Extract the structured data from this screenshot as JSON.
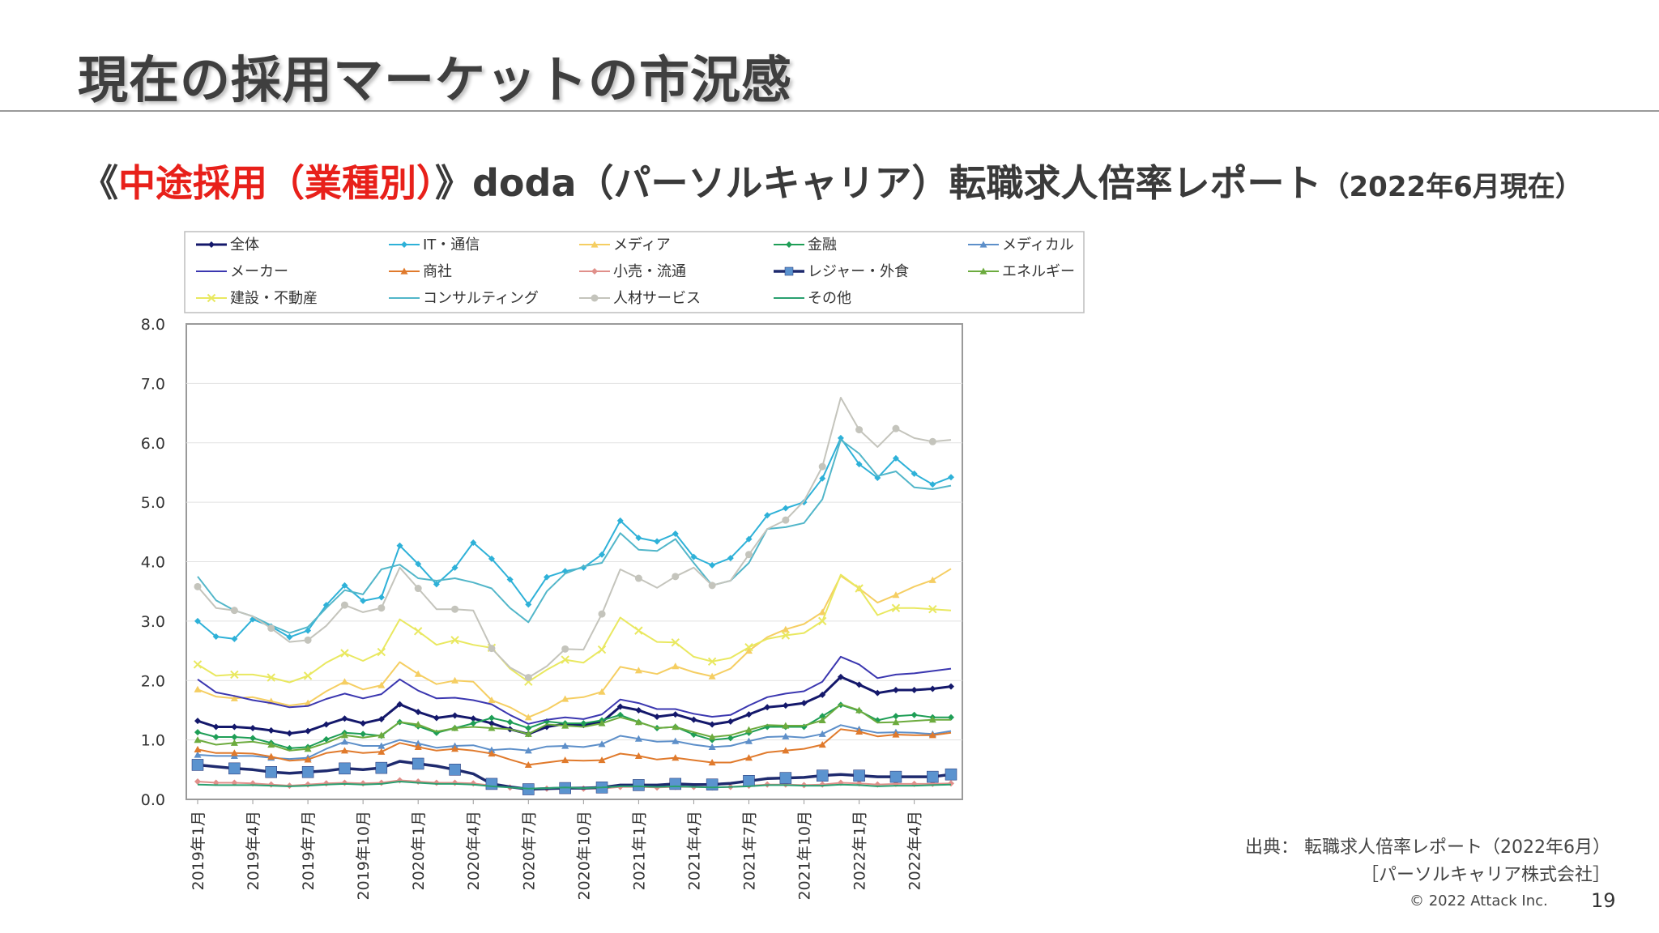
{
  "page": {
    "title": "現在の採用マーケットの市況感",
    "subtitle": {
      "open": "《",
      "highlight": "中途採用（業種別）",
      "mid": "》doda（パーソルキャリア）転職求人倍率レポート",
      "small": "（2022年6月現在）"
    },
    "source_line1": "出典： 転職求人倍率レポート（2022年6月）",
    "source_line2": "［パーソルキャリア株式会社］",
    "copyright": "© 2022 Attack Inc.",
    "page_number": "19"
  },
  "chart_data": {
    "type": "line",
    "ylim": [
      0,
      8
    ],
    "y_ticks": [
      "0.0",
      "1.0",
      "2.0",
      "3.0",
      "4.0",
      "5.0",
      "6.0",
      "7.0",
      "8.0"
    ],
    "x_labels": [
      "2019年1月",
      "2019年4月",
      "2019年7月",
      "2019年10月",
      "2020年1月",
      "2020年4月",
      "2020年7月",
      "2020年10月",
      "2021年1月",
      "2021年4月",
      "2021年7月",
      "2021年10月",
      "2022年1月",
      "2022年4月"
    ],
    "x_label_indices": [
      0,
      3,
      6,
      9,
      12,
      15,
      18,
      21,
      24,
      27,
      30,
      33,
      36,
      39
    ],
    "n_points": 42,
    "legend_placement": "top",
    "grid": true,
    "series": [
      {
        "name": "全体",
        "color": "#14186b",
        "marker": "diamond",
        "width": 3,
        "values": [
          1.32,
          1.22,
          1.22,
          1.2,
          1.16,
          1.11,
          1.15,
          1.26,
          1.36,
          1.28,
          1.35,
          1.6,
          1.47,
          1.37,
          1.41,
          1.36,
          1.28,
          1.18,
          1.1,
          1.22,
          1.27,
          1.25,
          1.3,
          1.56,
          1.5,
          1.39,
          1.43,
          1.34,
          1.26,
          1.31,
          1.43,
          1.55,
          1.58,
          1.62,
          1.76,
          2.06,
          1.93,
          1.79,
          1.84,
          1.84,
          1.86,
          1.9
        ]
      },
      {
        "name": "IT・通信",
        "color": "#2eb1d8",
        "marker": "diamond",
        "width": 2,
        "values": [
          3.0,
          2.74,
          2.7,
          3.03,
          2.91,
          2.73,
          2.84,
          3.27,
          3.6,
          3.34,
          3.4,
          4.27,
          3.96,
          3.62,
          3.9,
          4.32,
          4.05,
          3.7,
          3.28,
          3.74,
          3.84,
          3.9,
          4.12,
          4.69,
          4.4,
          4.34,
          4.47,
          4.08,
          3.94,
          4.06,
          4.38,
          4.78,
          4.9,
          5.0,
          5.4,
          6.08,
          5.64,
          5.41,
          5.74,
          5.48,
          5.3,
          5.42
        ]
      },
      {
        "name": "メディア",
        "color": "#f5ce62",
        "marker": "triangle",
        "width": 2,
        "values": [
          1.85,
          1.73,
          1.7,
          1.72,
          1.65,
          1.58,
          1.62,
          1.82,
          1.98,
          1.85,
          1.92,
          2.31,
          2.11,
          1.94,
          2.0,
          1.98,
          1.67,
          1.55,
          1.38,
          1.51,
          1.69,
          1.72,
          1.81,
          2.23,
          2.17,
          2.11,
          2.24,
          2.14,
          2.07,
          2.2,
          2.5,
          2.73,
          2.86,
          2.95,
          3.15,
          3.76,
          3.55,
          3.31,
          3.44,
          3.58,
          3.69,
          3.88
        ]
      },
      {
        "name": "金融",
        "color": "#1e9e56",
        "marker": "diamond",
        "width": 2,
        "values": [
          1.13,
          1.05,
          1.05,
          1.03,
          0.95,
          0.86,
          0.88,
          1.01,
          1.12,
          1.1,
          1.07,
          1.3,
          1.23,
          1.12,
          1.2,
          1.28,
          1.37,
          1.3,
          1.2,
          1.31,
          1.28,
          1.28,
          1.33,
          1.42,
          1.3,
          1.2,
          1.22,
          1.09,
          1.0,
          1.03,
          1.12,
          1.22,
          1.22,
          1.22,
          1.4,
          1.59,
          1.49,
          1.33,
          1.4,
          1.42,
          1.38,
          1.38
        ]
      },
      {
        "name": "メディカル",
        "color": "#5d8fc9",
        "marker": "triangle",
        "width": 2,
        "values": [
          0.75,
          0.73,
          0.73,
          0.73,
          0.7,
          0.68,
          0.7,
          0.85,
          0.97,
          0.9,
          0.9,
          1.0,
          0.94,
          0.87,
          0.9,
          0.91,
          0.83,
          0.85,
          0.82,
          0.89,
          0.9,
          0.88,
          0.93,
          1.07,
          1.02,
          0.97,
          0.98,
          0.92,
          0.88,
          0.9,
          0.98,
          1.05,
          1.06,
          1.04,
          1.1,
          1.25,
          1.18,
          1.12,
          1.13,
          1.12,
          1.1,
          1.15
        ]
      },
      {
        "name": "メーカー",
        "color": "#3b37b0",
        "marker": "none",
        "width": 2,
        "values": [
          2.02,
          1.8,
          1.74,
          1.67,
          1.62,
          1.55,
          1.57,
          1.69,
          1.78,
          1.7,
          1.77,
          2.02,
          1.83,
          1.7,
          1.71,
          1.67,
          1.6,
          1.42,
          1.27,
          1.34,
          1.38,
          1.35,
          1.43,
          1.68,
          1.62,
          1.52,
          1.52,
          1.44,
          1.39,
          1.42,
          1.58,
          1.72,
          1.78,
          1.82,
          1.98,
          2.4,
          2.27,
          2.04,
          2.1,
          2.12,
          2.16,
          2.2
        ]
      },
      {
        "name": "商社",
        "color": "#e07a2c",
        "marker": "triangle",
        "width": 2,
        "values": [
          0.84,
          0.78,
          0.78,
          0.77,
          0.72,
          0.65,
          0.67,
          0.78,
          0.82,
          0.78,
          0.8,
          0.95,
          0.88,
          0.82,
          0.85,
          0.82,
          0.77,
          0.67,
          0.58,
          0.62,
          0.66,
          0.65,
          0.66,
          0.77,
          0.73,
          0.67,
          0.7,
          0.66,
          0.62,
          0.62,
          0.7,
          0.79,
          0.82,
          0.85,
          0.92,
          1.18,
          1.14,
          1.06,
          1.09,
          1.08,
          1.08,
          1.12
        ]
      },
      {
        "name": "小売・流通",
        "color": "#e08f8a",
        "marker": "diamond",
        "width": 2,
        "values": [
          0.3,
          0.28,
          0.28,
          0.27,
          0.25,
          0.23,
          0.25,
          0.27,
          0.28,
          0.27,
          0.28,
          0.32,
          0.3,
          0.28,
          0.28,
          0.27,
          0.23,
          0.2,
          0.17,
          0.18,
          0.19,
          0.18,
          0.18,
          0.21,
          0.21,
          0.2,
          0.21,
          0.21,
          0.2,
          0.21,
          0.23,
          0.25,
          0.25,
          0.24,
          0.25,
          0.28,
          0.27,
          0.25,
          0.26,
          0.26,
          0.26,
          0.27
        ]
      },
      {
        "name": "レジャー・外食",
        "color": "#1e2a6e",
        "marker": "square",
        "width": 3.5,
        "values": [
          0.58,
          0.55,
          0.52,
          0.5,
          0.46,
          0.44,
          0.46,
          0.48,
          0.52,
          0.5,
          0.53,
          0.64,
          0.6,
          0.56,
          0.5,
          0.43,
          0.26,
          0.21,
          0.17,
          0.18,
          0.19,
          0.19,
          0.2,
          0.24,
          0.24,
          0.24,
          0.26,
          0.25,
          0.25,
          0.27,
          0.31,
          0.35,
          0.36,
          0.37,
          0.4,
          0.42,
          0.4,
          0.38,
          0.38,
          0.38,
          0.38,
          0.42
        ]
      },
      {
        "name": "エネルギー",
        "color": "#6cab3e",
        "marker": "triangle",
        "width": 2,
        "values": [
          1.0,
          0.92,
          0.95,
          0.97,
          0.92,
          0.82,
          0.85,
          0.95,
          1.08,
          1.04,
          1.08,
          1.3,
          1.26,
          1.14,
          1.2,
          1.22,
          1.2,
          1.18,
          1.1,
          1.26,
          1.24,
          1.22,
          1.28,
          1.38,
          1.3,
          1.2,
          1.22,
          1.13,
          1.05,
          1.08,
          1.17,
          1.25,
          1.24,
          1.24,
          1.33,
          1.6,
          1.5,
          1.29,
          1.3,
          1.32,
          1.34,
          1.34
        ]
      },
      {
        "name": "建設・不動産",
        "color": "#e9e860",
        "marker": "x",
        "width": 2,
        "values": [
          2.27,
          2.08,
          2.1,
          2.1,
          2.05,
          1.97,
          2.08,
          2.3,
          2.46,
          2.33,
          2.48,
          3.03,
          2.83,
          2.6,
          2.68,
          2.6,
          2.55,
          2.2,
          1.98,
          2.18,
          2.35,
          2.3,
          2.52,
          3.06,
          2.84,
          2.65,
          2.64,
          2.4,
          2.32,
          2.38,
          2.56,
          2.7,
          2.76,
          2.8,
          3.0,
          3.78,
          3.55,
          3.1,
          3.22,
          3.22,
          3.2,
          3.18
        ]
      },
      {
        "name": "コンサルティング",
        "color": "#52b6c9",
        "marker": "none",
        "width": 2,
        "values": [
          3.75,
          3.35,
          3.18,
          3.08,
          2.93,
          2.8,
          2.9,
          3.22,
          3.52,
          3.45,
          3.87,
          3.95,
          3.72,
          3.68,
          3.72,
          3.65,
          3.55,
          3.22,
          2.98,
          3.5,
          3.8,
          3.92,
          3.98,
          4.48,
          4.2,
          4.18,
          4.38,
          3.98,
          3.6,
          3.68,
          3.98,
          4.55,
          4.58,
          4.65,
          5.05,
          6.05,
          5.82,
          5.44,
          5.52,
          5.25,
          5.22,
          5.28
        ]
      },
      {
        "name": "人材サービス",
        "color": "#c4c4bc",
        "marker": "circle",
        "width": 2,
        "values": [
          3.58,
          3.22,
          3.18,
          3.08,
          2.88,
          2.65,
          2.68,
          2.92,
          3.27,
          3.15,
          3.22,
          3.9,
          3.55,
          3.2,
          3.2,
          3.18,
          2.54,
          2.22,
          2.05,
          2.24,
          2.53,
          2.52,
          3.12,
          3.87,
          3.72,
          3.56,
          3.75,
          3.9,
          3.6,
          3.68,
          4.12,
          4.55,
          4.7,
          5.02,
          5.6,
          6.76,
          6.22,
          5.93,
          6.24,
          6.08,
          6.02,
          6.05
        ]
      },
      {
        "name": "その他",
        "color": "#2aa070",
        "marker": "none",
        "width": 2,
        "values": [
          0.25,
          0.24,
          0.24,
          0.24,
          0.23,
          0.22,
          0.23,
          0.25,
          0.26,
          0.25,
          0.26,
          0.3,
          0.28,
          0.26,
          0.26,
          0.25,
          0.22,
          0.2,
          0.18,
          0.19,
          0.2,
          0.19,
          0.2,
          0.22,
          0.22,
          0.21,
          0.22,
          0.21,
          0.2,
          0.21,
          0.22,
          0.24,
          0.24,
          0.23,
          0.23,
          0.25,
          0.24,
          0.22,
          0.23,
          0.23,
          0.24,
          0.25
        ]
      }
    ]
  }
}
